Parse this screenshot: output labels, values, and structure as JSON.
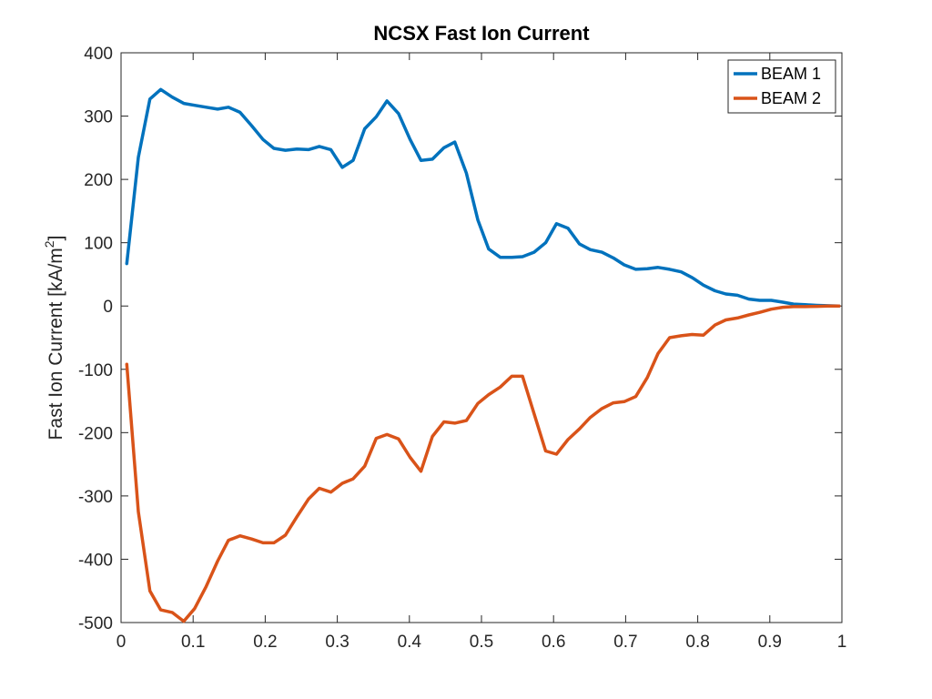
{
  "chart_data": {
    "type": "line",
    "title": "NCSX Fast Ion Current",
    "xlabel": "",
    "ylabel": "Fast Ion Current [kA/m",
    "ylabel_superscript": "2",
    "ylabel_suffix": "]",
    "xlim": [
      0,
      1
    ],
    "ylim": [
      -500,
      400
    ],
    "xticks": [
      0,
      0.1,
      0.2,
      0.3,
      0.4,
      0.5,
      0.6,
      0.7,
      0.8,
      0.9,
      1
    ],
    "xtick_labels": [
      "0",
      "0.1",
      "0.2",
      "0.3",
      "0.4",
      "0.5",
      "0.6",
      "0.7",
      "0.8",
      "0.9",
      "1"
    ],
    "yticks": [
      -500,
      -400,
      -300,
      -200,
      -100,
      0,
      100,
      200,
      300,
      400
    ],
    "ytick_labels": [
      "-500",
      "-400",
      "-300",
      "-200",
      "-100",
      "0",
      "100",
      "200",
      "300",
      "400"
    ],
    "grid": false,
    "legend_position": "top-right",
    "x": [
      0.008,
      0.024,
      0.04,
      0.055,
      0.071,
      0.087,
      0.102,
      0.118,
      0.134,
      0.149,
      0.165,
      0.181,
      0.197,
      0.212,
      0.228,
      0.244,
      0.26,
      0.275,
      0.291,
      0.307,
      0.322,
      0.338,
      0.354,
      0.369,
      0.385,
      0.401,
      0.416,
      0.432,
      0.448,
      0.463,
      0.479,
      0.495,
      0.51,
      0.526,
      0.542,
      0.557,
      0.573,
      0.589,
      0.604,
      0.62,
      0.636,
      0.651,
      0.667,
      0.683,
      0.698,
      0.714,
      0.73,
      0.745,
      0.761,
      0.777,
      0.792,
      0.808,
      0.824,
      0.839,
      0.855,
      0.871,
      0.886,
      0.902,
      0.918,
      0.933,
      0.949,
      0.965,
      0.98,
      0.996
    ],
    "series": [
      {
        "name": "BEAM 1",
        "color": "#0072BD",
        "values": [
          67,
          235,
          327,
          342,
          330,
          320,
          317,
          314,
          311,
          314,
          306,
          285,
          263,
          249,
          246,
          248,
          247,
          252,
          247,
          219,
          230,
          280,
          299,
          324,
          304,
          263,
          230,
          232,
          250,
          259,
          210,
          136,
          90,
          77,
          77,
          78,
          85,
          100,
          130,
          123,
          98,
          89,
          85,
          76,
          65,
          58,
          59,
          61,
          58,
          54,
          45,
          33,
          24,
          19,
          17,
          11,
          9,
          9,
          6,
          3,
          2,
          1,
          0.5,
          0
        ]
      },
      {
        "name": "BEAM 2",
        "color": "#D95319",
        "values": [
          -92,
          -325,
          -450,
          -480,
          -484,
          -498,
          -478,
          -443,
          -403,
          -370,
          -363,
          -368,
          -374,
          -374,
          -362,
          -333,
          -305,
          -288,
          -294,
          -280,
          -273,
          -253,
          -209,
          -203,
          -210,
          -239,
          -261,
          -206,
          -183,
          -185,
          -181,
          -154,
          -140,
          -128,
          -111,
          -111,
          -170,
          -229,
          -234,
          -211,
          -194,
          -176,
          -162,
          -153,
          -151,
          -143,
          -113,
          -75,
          -50,
          -47,
          -45,
          -46,
          -30,
          -22,
          -19,
          -14,
          -10,
          -5,
          -2,
          -1,
          -1,
          -0.5,
          0,
          0
        ]
      }
    ]
  }
}
